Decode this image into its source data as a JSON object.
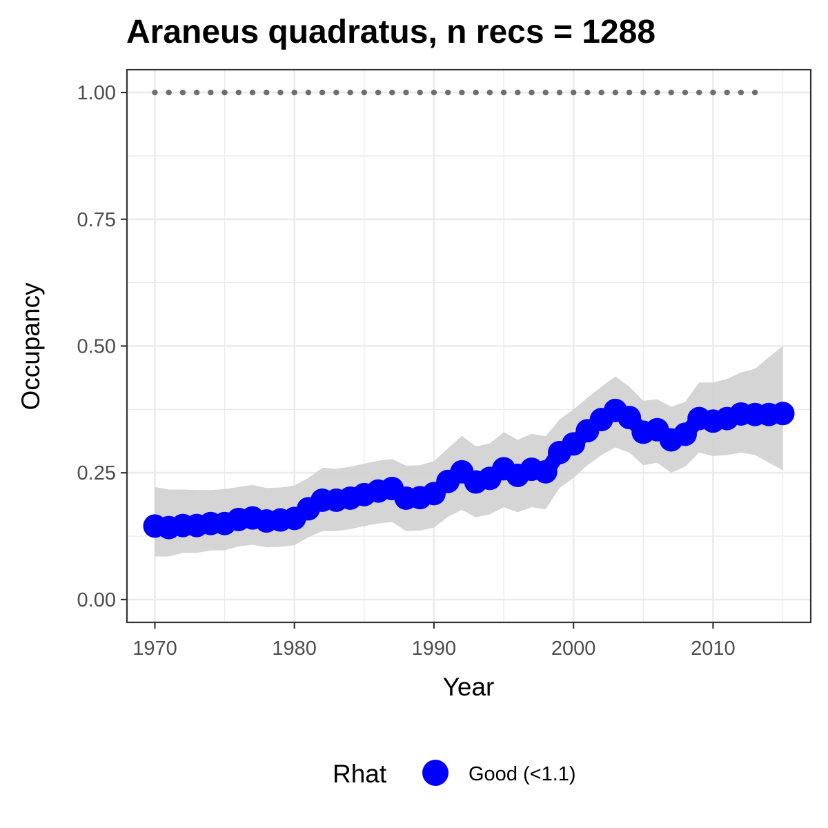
{
  "chart_data": {
    "type": "line",
    "title": "Araneus quadratus, n recs = 1288",
    "xlabel": "Year",
    "ylabel": "Occupancy",
    "xlim": [
      1968,
      2017
    ],
    "ylim": [
      -0.045,
      1.045
    ],
    "x_ticks": [
      1970,
      1980,
      1990,
      2000,
      2010
    ],
    "x_tick_labels": [
      "1970",
      "1980",
      "1990",
      "2000",
      "2010"
    ],
    "y_ticks": [
      0,
      0.25,
      0.5,
      0.75,
      1.0
    ],
    "y_tick_labels": [
      "0.00",
      "0.25",
      "0.50",
      "0.75",
      "1.00"
    ],
    "grid": true,
    "legend": {
      "position": "bottom",
      "title": "Rhat",
      "entries": [
        {
          "label": "Good (<1.1)",
          "color": "#0000ff"
        }
      ]
    },
    "colors": {
      "series": "#0000ff",
      "ribbon": "#d3d3d3",
      "reference_points": "#6e6e6e",
      "grid": "#ebebeb",
      "panel_border": "#333333"
    },
    "series": [
      {
        "name": "Occupancy",
        "x": [
          1970,
          1971,
          1972,
          1973,
          1974,
          1975,
          1976,
          1977,
          1978,
          1979,
          1980,
          1981,
          1982,
          1983,
          1984,
          1985,
          1986,
          1987,
          1988,
          1989,
          1990,
          1991,
          1992,
          1993,
          1994,
          1995,
          1996,
          1997,
          1998,
          1999,
          2000,
          2001,
          2002,
          2003,
          2004,
          2005,
          2006,
          2007,
          2008,
          2009,
          2010,
          2011,
          2012,
          2013,
          2014,
          2015
        ],
        "y": [
          0.145,
          0.142,
          0.146,
          0.146,
          0.15,
          0.15,
          0.158,
          0.161,
          0.155,
          0.157,
          0.16,
          0.179,
          0.196,
          0.196,
          0.2,
          0.207,
          0.214,
          0.219,
          0.2,
          0.201,
          0.209,
          0.233,
          0.252,
          0.232,
          0.239,
          0.258,
          0.245,
          0.257,
          0.252,
          0.29,
          0.307,
          0.333,
          0.355,
          0.373,
          0.359,
          0.33,
          0.335,
          0.315,
          0.326,
          0.357,
          0.352,
          0.357,
          0.366,
          0.365,
          0.365,
          0.367
        ],
        "lower": [
          0.085,
          0.085,
          0.092,
          0.092,
          0.097,
          0.097,
          0.105,
          0.108,
          0.103,
          0.104,
          0.107,
          0.123,
          0.135,
          0.135,
          0.139,
          0.145,
          0.15,
          0.153,
          0.135,
          0.136,
          0.142,
          0.163,
          0.177,
          0.162,
          0.168,
          0.182,
          0.172,
          0.182,
          0.178,
          0.22,
          0.24,
          0.265,
          0.285,
          0.3,
          0.29,
          0.265,
          0.27,
          0.25,
          0.262,
          0.29,
          0.283,
          0.285,
          0.29,
          0.285,
          0.27,
          0.255
        ],
        "upper": [
          0.222,
          0.217,
          0.217,
          0.216,
          0.216,
          0.218,
          0.222,
          0.226,
          0.22,
          0.221,
          0.225,
          0.24,
          0.26,
          0.258,
          0.262,
          0.268,
          0.274,
          0.277,
          0.264,
          0.265,
          0.273,
          0.298,
          0.323,
          0.302,
          0.308,
          0.33,
          0.315,
          0.327,
          0.322,
          0.355,
          0.375,
          0.398,
          0.42,
          0.44,
          0.42,
          0.392,
          0.395,
          0.38,
          0.39,
          0.428,
          0.428,
          0.435,
          0.448,
          0.455,
          0.478,
          0.5
        ]
      },
      {
        "name": "Reference",
        "x": [
          1970,
          1971,
          1972,
          1973,
          1974,
          1975,
          1976,
          1977,
          1978,
          1979,
          1980,
          1981,
          1982,
          1983,
          1984,
          1985,
          1986,
          1987,
          1988,
          1989,
          1990,
          1991,
          1992,
          1993,
          1994,
          1995,
          1996,
          1997,
          1998,
          1999,
          2000,
          2001,
          2002,
          2003,
          2004,
          2005,
          2006,
          2007,
          2008,
          2009,
          2010,
          2011,
          2012,
          2013
        ],
        "y": [
          1,
          1,
          1,
          1,
          1,
          1,
          1,
          1,
          1,
          1,
          1,
          1,
          1,
          1,
          1,
          1,
          1,
          1,
          1,
          1,
          1,
          1,
          1,
          1,
          1,
          1,
          1,
          1,
          1,
          1,
          1,
          1,
          1,
          1,
          1,
          1,
          1,
          1,
          1,
          1,
          1,
          1,
          1,
          1
        ]
      }
    ]
  }
}
